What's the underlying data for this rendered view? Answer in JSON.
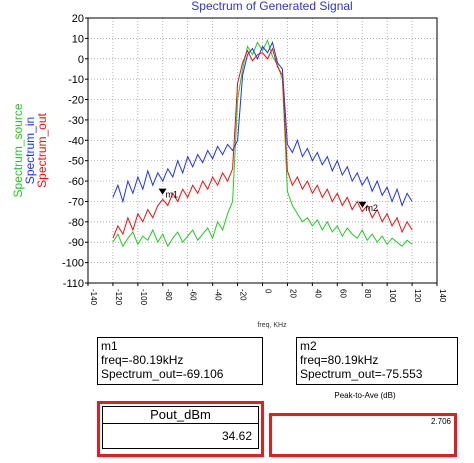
{
  "chart_data": {
    "type": "line",
    "title": "Spectrum of Generated Signal",
    "x_label": "freq, KHz",
    "x": [
      -120,
      -116,
      -112,
      -108,
      -104,
      -100,
      -96,
      -92,
      -88,
      -84,
      -80,
      -76,
      -72,
      -68,
      -64,
      -60,
      -56,
      -52,
      -48,
      -44,
      -40,
      -36,
      -32,
      -28,
      -24,
      -20,
      -16,
      -12,
      -8,
      -4,
      0,
      4,
      8,
      12,
      16,
      20,
      24,
      28,
      32,
      36,
      40,
      44,
      48,
      52,
      56,
      60,
      64,
      68,
      72,
      76,
      80,
      84,
      88,
      92,
      96,
      100,
      104,
      108,
      112,
      116,
      120
    ],
    "series": [
      {
        "name": "Spectrum_source",
        "color": "#22cc22",
        "values": [
          -90,
          -86,
          -92,
          -88,
          -85,
          -91,
          -87,
          -89,
          -84,
          -90,
          -86,
          -92,
          -88,
          -85,
          -90,
          -87,
          -84,
          -89,
          -86,
          -83,
          -88,
          -80,
          -84,
          -76,
          -70,
          -20,
          -5,
          6,
          2,
          8,
          4,
          9,
          1,
          -3,
          -10,
          -65,
          -72,
          -76,
          -80,
          -78,
          -82,
          -79,
          -84,
          -80,
          -85,
          -82,
          -87,
          -83,
          -86,
          -88,
          -84,
          -89,
          -86,
          -90,
          -87,
          -91,
          -88,
          -90,
          -92,
          -89,
          -91
        ]
      },
      {
        "name": "Spectrum_in",
        "color": "#2233ee",
        "values": [
          -68,
          -62,
          -70,
          -60,
          -66,
          -58,
          -64,
          -55,
          -62,
          -56,
          -60,
          -54,
          -58,
          -50,
          -56,
          -48,
          -53,
          -47,
          -51,
          -45,
          -49,
          -43,
          -47,
          -42,
          -45,
          -40,
          -8,
          2,
          5,
          0,
          6,
          3,
          8,
          -2,
          -5,
          -42,
          -46,
          -40,
          -48,
          -44,
          -50,
          -46,
          -52,
          -48,
          -55,
          -50,
          -57,
          -53,
          -60,
          -56,
          -62,
          -58,
          -65,
          -60,
          -67,
          -63,
          -70,
          -64,
          -72,
          -66,
          -70
        ]
      },
      {
        "name": "Spectrum_out",
        "color": "#ee1111",
        "values": [
          -88,
          -82,
          -86,
          -78,
          -84,
          -76,
          -80,
          -74,
          -78,
          -72,
          -69,
          -72,
          -66,
          -70,
          -64,
          -68,
          -62,
          -66,
          -60,
          -64,
          -58,
          -62,
          -56,
          -60,
          -54,
          -12,
          -2,
          4,
          -1,
          2,
          3,
          0,
          5,
          -4,
          -8,
          -55,
          -62,
          -58,
          -64,
          -60,
          -66,
          -62,
          -68,
          -64,
          -70,
          -66,
          -72,
          -68,
          -74,
          -70,
          -75,
          -72,
          -78,
          -74,
          -80,
          -76,
          -82,
          -78,
          -85,
          -80,
          -84
        ]
      }
    ],
    "xlim": [
      -140,
      140
    ],
    "xticks": [
      -140,
      -120,
      -100,
      -80,
      -60,
      -40,
      -20,
      0,
      20,
      40,
      60,
      80,
      100,
      120,
      140
    ],
    "ylim": [
      -110,
      20
    ],
    "yticks": [
      -110,
      -100,
      -90,
      -80,
      -70,
      -60,
      -50,
      -40,
      -30,
      -20,
      -10,
      0,
      10,
      20
    ],
    "grid": true,
    "markers": [
      {
        "name": "m1",
        "x": -80.19,
        "y": -69.106
      },
      {
        "name": "m2",
        "x": 80.19,
        "y": -75.553
      }
    ]
  },
  "marker_readouts": [
    {
      "name": "m1",
      "freq": "freq=-80.19kHz",
      "value": "Spectrum_out=-69.106"
    },
    {
      "name": "m2",
      "freq": "freq=80.19kHz",
      "value": "Spectrum_out=-75.553"
    }
  ],
  "pout": {
    "header": "Pout_dBm",
    "value": "34.62"
  },
  "peak_to_ave": {
    "header": "Peak-to-Ave (dB)",
    "value": "2.706"
  }
}
